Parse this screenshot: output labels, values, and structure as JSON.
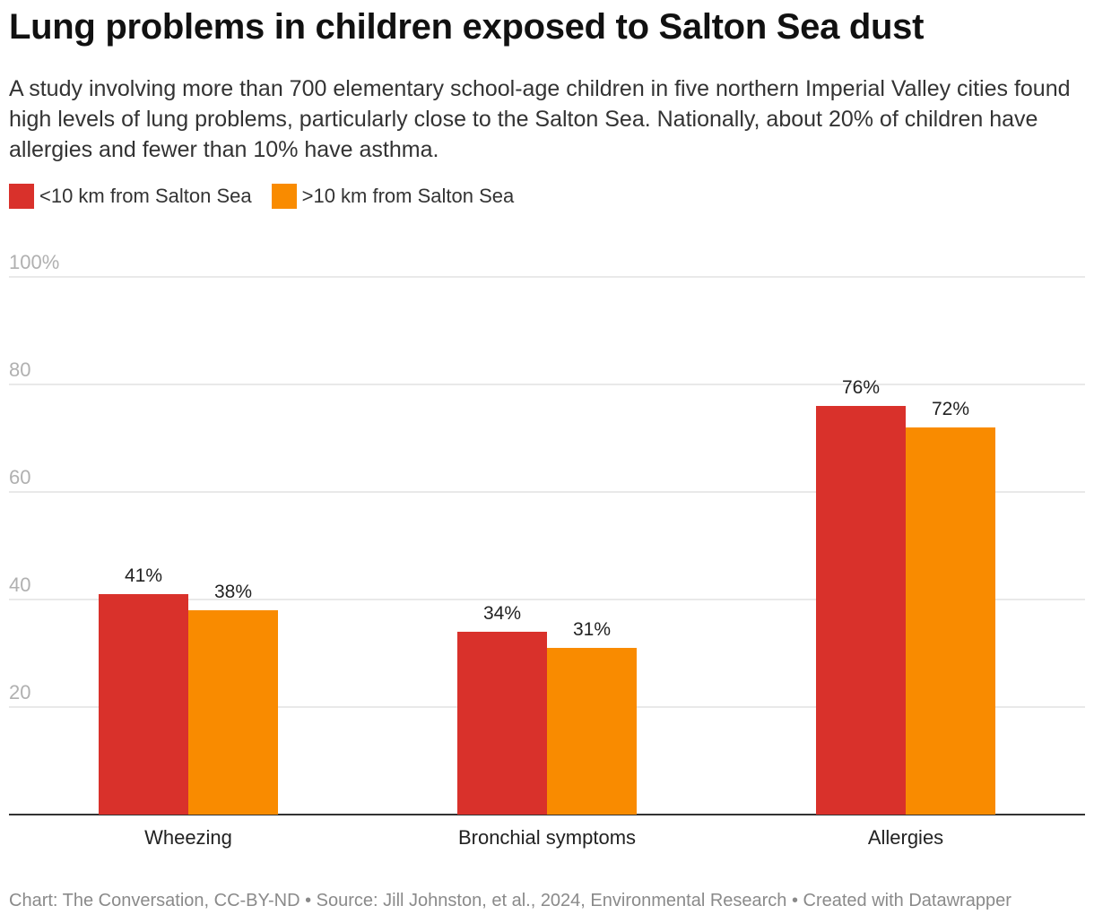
{
  "title": "Lung problems in children exposed to Salton Sea dust",
  "subtitle": "A study involving more than 700 elementary school-age children in five northern Imperial Valley cities found high levels of lung problems, particularly close to the Salton Sea. Nationally, about 20% of children have allergies and fewer than 10% have asthma.",
  "footer": "Chart: The Conversation, CC-BY-ND • Source: Jill Johnston, et al., 2024, Environmental Research • Created with Datawrapper",
  "chart_data": {
    "type": "bar",
    "title": "Lung problems in children exposed to Salton Sea dust",
    "xlabel": "",
    "ylabel": "",
    "ylim": [
      0,
      100
    ],
    "yticks": [
      20,
      40,
      60,
      80,
      100
    ],
    "ytick_labels": [
      "20",
      "40",
      "60",
      "80",
      "100%"
    ],
    "categories": [
      "Wheezing",
      "Bronchial symptoms",
      "Allergies"
    ],
    "series": [
      {
        "name": "<10 km from Salton Sea",
        "color": "#d9312b",
        "values": [
          41,
          34,
          76
        ]
      },
      {
        "name": ">10 km from Salton Sea",
        "color": "#f98b00",
        "values": [
          38,
          31,
          72
        ]
      }
    ],
    "value_suffix": "%",
    "grid": true,
    "legend_position": "top-left"
  }
}
